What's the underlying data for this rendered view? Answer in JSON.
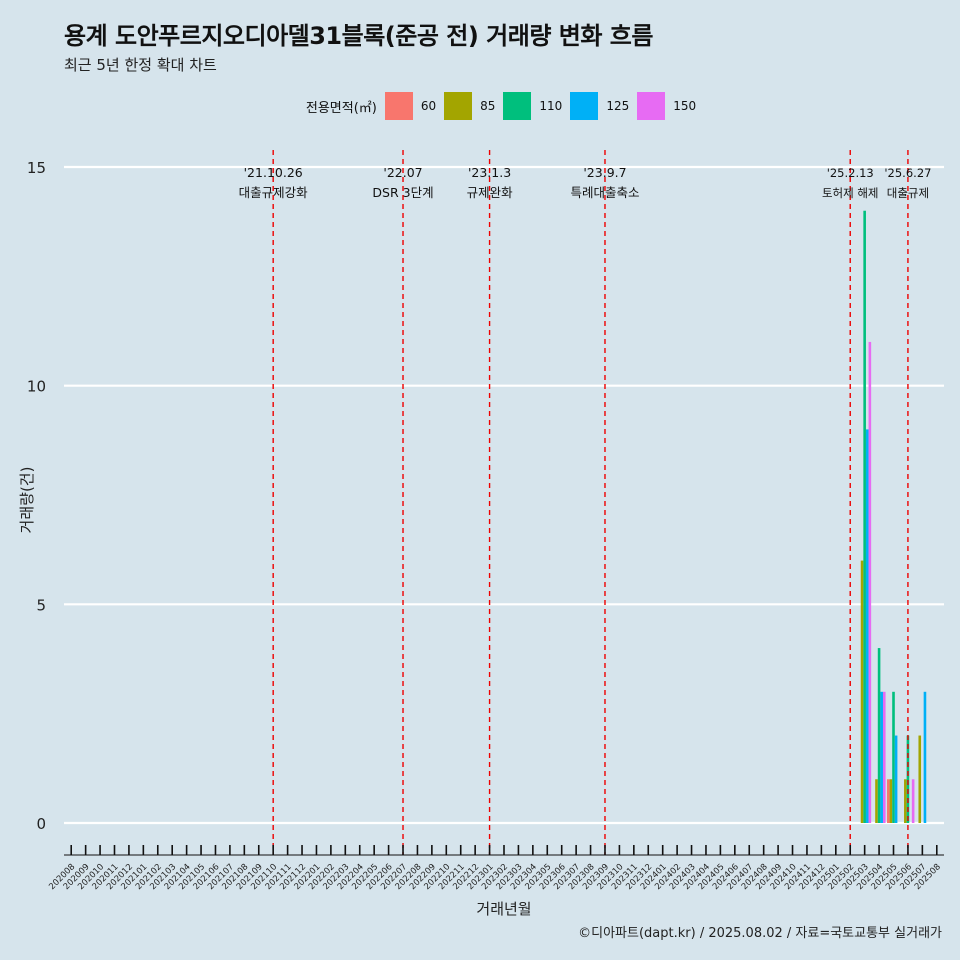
{
  "chart_data": {
    "type": "bar",
    "title": "용계 도안푸르지오디아델31블록(준공 전) 거래량 변화 흐름",
    "subtitle": "최근 5년 한정 확대 차트",
    "xlabel": "거래년월",
    "ylabel": "거래량(건)",
    "ylim": [
      0,
      15
    ],
    "yticks": [
      0,
      5,
      10,
      15
    ],
    "legend_title": "전용면적(㎡)",
    "legend_position": "top",
    "caption": "©디아파트(dapt.kr) / 2025.08.02 / 자료=국토교통부 실거래가",
    "categories": [
      "202008",
      "202009",
      "202010",
      "202011",
      "202012",
      "202101",
      "202102",
      "202103",
      "202104",
      "202105",
      "202106",
      "202107",
      "202108",
      "202109",
      "202110",
      "202111",
      "202112",
      "202201",
      "202202",
      "202203",
      "202204",
      "202205",
      "202206",
      "202207",
      "202208",
      "202209",
      "202210",
      "202211",
      "202212",
      "202301",
      "202302",
      "202303",
      "202304",
      "202305",
      "202306",
      "202307",
      "202308",
      "202309",
      "202310",
      "202311",
      "202312",
      "202401",
      "202402",
      "202403",
      "202404",
      "202405",
      "202406",
      "202407",
      "202408",
      "202409",
      "202410",
      "202411",
      "202412",
      "202501",
      "202502",
      "202503",
      "202504",
      "202505",
      "202506",
      "202507",
      "202508"
    ],
    "series": [
      {
        "name": "60",
        "color": "#F8766D",
        "points": [
          {
            "x": "202505",
            "value": 1
          }
        ]
      },
      {
        "name": "85",
        "color": "#A3A500",
        "points": [
          {
            "x": "202503",
            "value": 6
          },
          {
            "x": "202504",
            "value": 1
          },
          {
            "x": "202505",
            "value": 1
          },
          {
            "x": "202506",
            "value": 1
          },
          {
            "x": "202507",
            "value": 2
          }
        ]
      },
      {
        "name": "110",
        "color": "#00BF7D",
        "points": [
          {
            "x": "202503",
            "value": 14
          },
          {
            "x": "202504",
            "value": 4
          },
          {
            "x": "202505",
            "value": 3
          },
          {
            "x": "202506",
            "value": 2
          }
        ]
      },
      {
        "name": "125",
        "color": "#00B0F6",
        "points": [
          {
            "x": "202503",
            "value": 9
          },
          {
            "x": "202504",
            "value": 3
          },
          {
            "x": "202505",
            "value": 2
          },
          {
            "x": "202507",
            "value": 3
          }
        ]
      },
      {
        "name": "150",
        "color": "#E76BF3",
        "points": [
          {
            "x": "202503",
            "value": 11
          },
          {
            "x": "202504",
            "value": 3
          },
          {
            "x": "202506",
            "value": 1
          }
        ]
      }
    ],
    "event_lines": [
      {
        "x": "202110",
        "date": "'21.10.26",
        "label": "대출규제강화"
      },
      {
        "x": "202207",
        "date": "'22.07",
        "label": "DSR 3단계"
      },
      {
        "x": "202301",
        "date": "'23.1.3",
        "label": "규제완화"
      },
      {
        "x": "202309",
        "date": "'23.9.7",
        "label": "특례대출축소"
      },
      {
        "x": "202502",
        "date": "'25.2.13",
        "label": "토허제 해제"
      },
      {
        "x": "202506",
        "date": "'25.6.27",
        "label": "대출규제"
      }
    ]
  }
}
